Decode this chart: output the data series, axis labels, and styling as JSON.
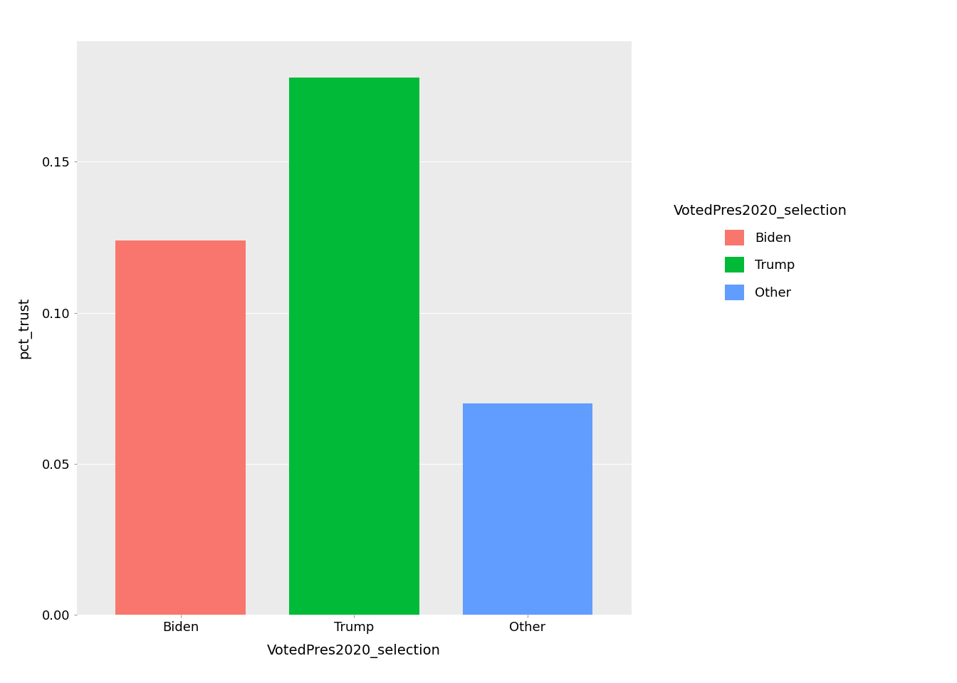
{
  "categories": [
    "Biden",
    "Trump",
    "Other"
  ],
  "values": [
    0.124,
    0.178,
    0.07
  ],
  "bar_colors": [
    "#F8766D",
    "#00BA38",
    "#619CFF"
  ],
  "xlabel": "VotedPres2020_selection",
  "ylabel": "pct_trust",
  "legend_title": "VotedPres2020_selection",
  "legend_labels": [
    "Biden",
    "Trump",
    "Other"
  ],
  "legend_colors": [
    "#F8766D",
    "#00BA38",
    "#619CFF"
  ],
  "ylim": [
    0,
    0.19
  ],
  "yticks": [
    0.0,
    0.05,
    0.1,
    0.15
  ],
  "background_color": "#EBEBEB",
  "grid_color": "#FFFFFF",
  "axis_label_fontsize": 14,
  "tick_fontsize": 13,
  "legend_title_fontsize": 14,
  "legend_fontsize": 13
}
